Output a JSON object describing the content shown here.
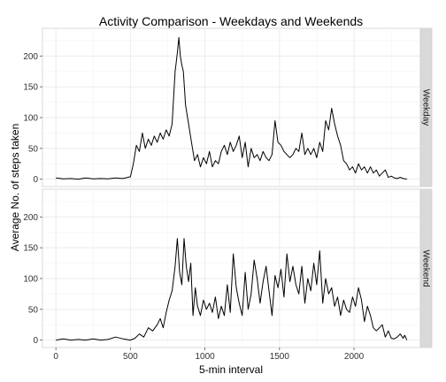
{
  "chart_data": {
    "type": "line",
    "title": "Activity Comparison - Weekdays and Weekends",
    "xlabel": "5-min interval",
    "ylabel": "Average No. of steps taken",
    "xlim": [
      -90,
      2445
    ],
    "ylim": [
      -12,
      245
    ],
    "x_ticks": [
      0,
      500,
      1000,
      1500,
      2000
    ],
    "y_ticks": [
      0,
      50,
      100,
      150,
      200
    ],
    "grid": true,
    "line_color": "#000000",
    "panel_background": "#ffffff",
    "grid_color": "#ebebeb",
    "strip_color": "#d9d9d9",
    "panels": [
      {
        "label": "Weekday",
        "x": [
          0,
          50,
          100,
          150,
          200,
          250,
          300,
          350,
          400,
          450,
          500,
          520,
          540,
          560,
          580,
          600,
          620,
          640,
          660,
          680,
          700,
          720,
          740,
          760,
          780,
          800,
          815,
          825,
          835,
          845,
          855,
          870,
          890,
          910,
          930,
          950,
          970,
          990,
          1010,
          1030,
          1050,
          1070,
          1090,
          1110,
          1130,
          1150,
          1170,
          1190,
          1210,
          1230,
          1250,
          1270,
          1290,
          1310,
          1330,
          1350,
          1370,
          1390,
          1410,
          1430,
          1450,
          1470,
          1490,
          1510,
          1530,
          1550,
          1570,
          1590,
          1610,
          1630,
          1650,
          1670,
          1690,
          1710,
          1730,
          1750,
          1770,
          1790,
          1810,
          1830,
          1850,
          1870,
          1890,
          1910,
          1930,
          1950,
          1970,
          1990,
          2010,
          2030,
          2050,
          2070,
          2090,
          2110,
          2130,
          2150,
          2170,
          2190,
          2210,
          2230,
          2250,
          2270,
          2290,
          2310,
          2330,
          2355
        ],
        "y": [
          2,
          0.5,
          1,
          0,
          2,
          0.5,
          1,
          0.5,
          2,
          1,
          4,
          25,
          55,
          45,
          75,
          50,
          65,
          55,
          70,
          60,
          75,
          65,
          80,
          70,
          90,
          175,
          205,
          230,
          200,
          185,
          175,
          120,
          90,
          60,
          30,
          40,
          20,
          35,
          25,
          45,
          20,
          30,
          25,
          45,
          55,
          40,
          60,
          45,
          55,
          70,
          35,
          60,
          20,
          50,
          35,
          40,
          30,
          45,
          35,
          30,
          40,
          95,
          60,
          55,
          45,
          40,
          35,
          40,
          50,
          45,
          75,
          40,
          50,
          40,
          50,
          35,
          60,
          45,
          95,
          80,
          115,
          90,
          70,
          55,
          30,
          25,
          15,
          20,
          10,
          25,
          15,
          20,
          10,
          20,
          10,
          15,
          5,
          10,
          15,
          3,
          5,
          2,
          1,
          3,
          1,
          0
        ]
      },
      {
        "label": "Weekend",
        "x": [
          0,
          50,
          100,
          150,
          200,
          250,
          300,
          350,
          400,
          450,
          500,
          530,
          560,
          590,
          620,
          650,
          680,
          700,
          720,
          740,
          760,
          780,
          800,
          815,
          830,
          845,
          860,
          875,
          890,
          905,
          920,
          935,
          950,
          970,
          990,
          1010,
          1030,
          1050,
          1070,
          1090,
          1110,
          1130,
          1150,
          1170,
          1190,
          1210,
          1230,
          1250,
          1270,
          1290,
          1310,
          1330,
          1350,
          1370,
          1390,
          1410,
          1430,
          1450,
          1470,
          1490,
          1510,
          1530,
          1550,
          1570,
          1590,
          1610,
          1630,
          1650,
          1670,
          1690,
          1710,
          1730,
          1750,
          1770,
          1790,
          1810,
          1830,
          1850,
          1870,
          1890,
          1910,
          1930,
          1950,
          1970,
          1990,
          2010,
          2030,
          2050,
          2070,
          2090,
          2110,
          2130,
          2150,
          2170,
          2190,
          2210,
          2230,
          2250,
          2270,
          2290,
          2310,
          2330,
          2340,
          2355
        ],
        "y": [
          0,
          2,
          0,
          1,
          0,
          2,
          0,
          1,
          5,
          2,
          0,
          3,
          10,
          5,
          20,
          15,
          25,
          35,
          20,
          45,
          65,
          80,
          120,
          165,
          110,
          90,
          165,
          120,
          95,
          125,
          40,
          85,
          55,
          40,
          65,
          50,
          60,
          45,
          70,
          35,
          55,
          40,
          90,
          45,
          140,
          85,
          60,
          40,
          110,
          50,
          75,
          130,
          100,
          60,
          95,
          120,
          80,
          40,
          105,
          85,
          115,
          70,
          140,
          95,
          120,
          90,
          75,
          120,
          60,
          100,
          80,
          125,
          90,
          145,
          60,
          100,
          75,
          85,
          55,
          70,
          40,
          65,
          50,
          45,
          70,
          55,
          85,
          65,
          30,
          55,
          40,
          20,
          15,
          20,
          25,
          5,
          15,
          3,
          2,
          5,
          10,
          3,
          8,
          0
        ]
      }
    ]
  }
}
